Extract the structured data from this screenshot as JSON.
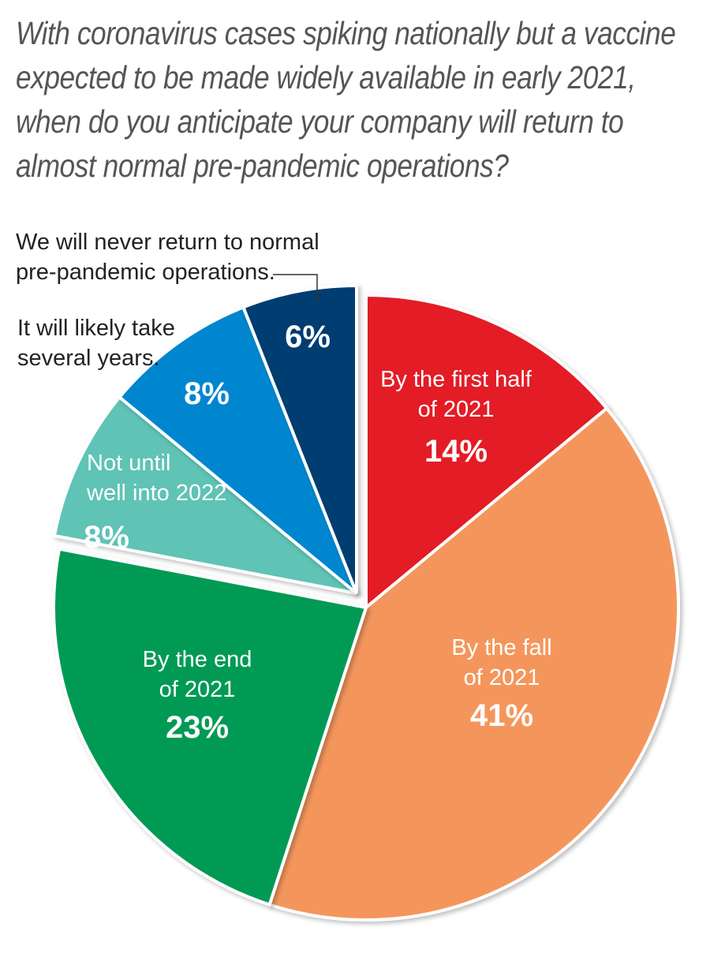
{
  "chart_data": {
    "type": "pie",
    "title": "With coronavirus cases spiking nationally but a vaccine expected to be made widely available in early 2021, when do you anticipate your company will return to almost normal pre-pandemic operations?",
    "slices": [
      {
        "label_lines": [
          "By the first half",
          "of 2021"
        ],
        "value": 14,
        "pct_label": "14%",
        "color": "#e31f26"
      },
      {
        "label_lines": [
          "By the fall",
          "of 2021"
        ],
        "value": 41,
        "pct_label": "41%",
        "color": "#f4965b"
      },
      {
        "label_lines": [
          "By the end",
          "of 2021"
        ],
        "value": 23,
        "pct_label": "23%",
        "color": "#009a55"
      },
      {
        "label_lines": [
          "Not until",
          "well into 2022"
        ],
        "value": 8,
        "pct_label": "8%",
        "color": "#5fc3b6"
      },
      {
        "label_lines": [
          "It will likely take",
          "several years."
        ],
        "value": 8,
        "pct_label": "8%",
        "color": "#0086cf"
      },
      {
        "label_lines": [
          "We will never return to normal",
          "pre-pandemic operations."
        ],
        "value": 6,
        "pct_label": "6%",
        "color": "#003e70"
      }
    ]
  }
}
